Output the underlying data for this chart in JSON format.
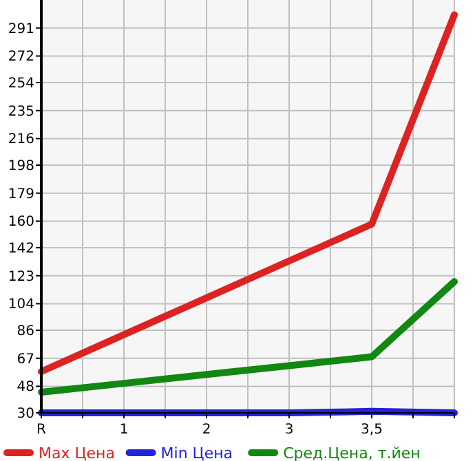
{
  "chart_data": {
    "type": "line",
    "categories": [
      "R",
      "1",
      "2",
      "3",
      "3,5",
      null
    ],
    "series": [
      {
        "name": "Max Цена",
        "color": "#dd2222",
        "values": [
          58,
          83,
          108,
          133,
          158,
          300
        ]
      },
      {
        "name": "Min Цена",
        "color": "#2222dd",
        "values": [
          30,
          30,
          30,
          30,
          31,
          30
        ]
      },
      {
        "name": "Сред.Цена, т.йен",
        "color": "#118811",
        "values": [
          44,
          50,
          56,
          62,
          68,
          119
        ]
      }
    ],
    "ylim": [
      30,
      310
    ],
    "yticks": [
      30,
      48,
      67,
      86,
      104,
      123,
      142,
      160,
      179,
      198,
      216,
      235,
      254,
      272,
      291
    ],
    "grid": true,
    "legend": "bottom",
    "marker": "none",
    "line_style": "solid"
  }
}
